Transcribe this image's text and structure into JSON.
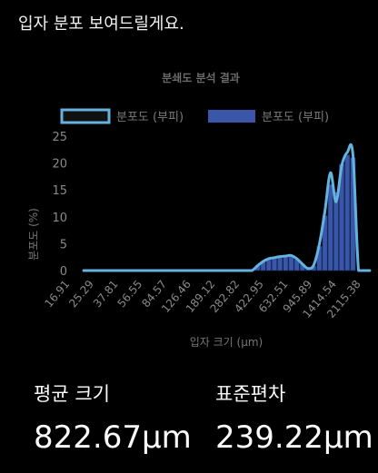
{
  "message": {
    "intro_text": "입자 분포 보여드릴게요."
  },
  "chart_data": {
    "type": "bar",
    "title": "분쇄도 분석 결과",
    "legend_position": "top",
    "series": [
      {
        "name": "분포도 (부피)",
        "kind": "line",
        "color": "#63b3de"
      },
      {
        "name": "분포도 (부피)",
        "kind": "bar",
        "color": "#3a56a8"
      }
    ],
    "xlabel": "입자 크기 (μm)",
    "ylabel": "분포도 (%)",
    "ylim": [
      0,
      25
    ],
    "y_ticks": [
      0,
      5,
      10,
      15,
      20,
      25
    ],
    "x_tick_labels": [
      "16.91",
      "25.29",
      "37.81",
      "56.55",
      "84.57",
      "126.46",
      "189.12",
      "282.82",
      "422.95",
      "632.51",
      "945.89",
      "1414.54",
      "2115.38"
    ],
    "bins": 49,
    "bar_values": [
      0,
      0,
      0,
      0,
      0,
      0,
      0,
      0,
      0,
      0,
      0,
      0,
      0,
      0,
      0,
      0,
      0,
      0,
      0,
      0,
      0,
      0,
      0,
      0,
      0,
      0,
      0,
      0,
      0,
      0,
      0,
      0.9,
      1.6,
      2.0,
      2.2,
      2.4,
      2.5,
      2.6,
      2.1,
      1.2,
      0.3,
      0.8,
      4.5,
      10.2,
      16.0,
      14.6,
      19.8,
      21.5,
      21.0
    ],
    "line_values": [
      0,
      0,
      0,
      0,
      0,
      0,
      0,
      0,
      0,
      0,
      0,
      0,
      0,
      0,
      0,
      0,
      0,
      0,
      0,
      0,
      0,
      0,
      0,
      0,
      0,
      0,
      0,
      0,
      0,
      0,
      0,
      0.9,
      1.7,
      2.2,
      2.4,
      2.6,
      2.7,
      2.8,
      2.2,
      1.2,
      0.4,
      1.0,
      4.8,
      11.0,
      18.2,
      12.8,
      19.5,
      22.0,
      21.6,
      0,
      0,
      0
    ],
    "grid": false
  },
  "stats": {
    "mean_label": "평균 크기",
    "mean_value": "822.67μm",
    "sd_label": "표준편차",
    "sd_value": "239.22μm"
  }
}
